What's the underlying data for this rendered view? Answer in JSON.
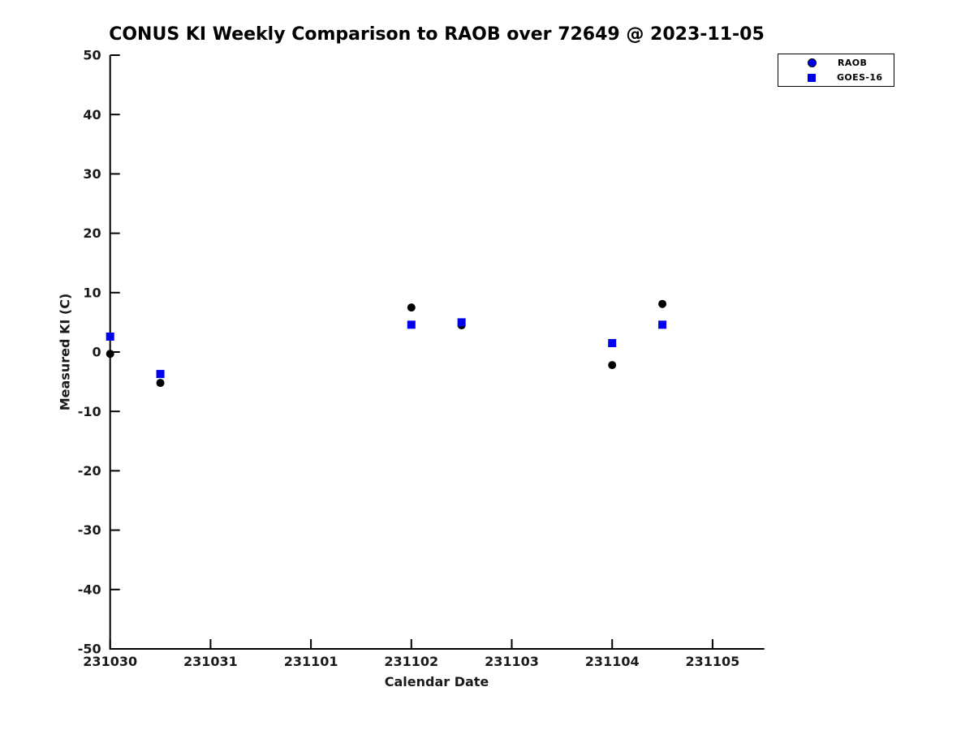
{
  "figure": {
    "title": "CONUS KI Weekly Comparison to RAOB over 72649 @ 2023-11-05",
    "xlabel": "Calendar Date",
    "ylabel": "Measured KI (C)"
  },
  "legend": {
    "position": "top-right",
    "items": [
      {
        "label": "RAOB",
        "marker": "circle-icon",
        "color": "#0000ee"
      },
      {
        "label": "GOES-16",
        "marker": "square-icon",
        "color": "#0000ee"
      }
    ]
  },
  "chart_data": {
    "type": "scatter",
    "title": "CONUS KI Weekly Comparison to RAOB over 72649 @ 2023-11-05",
    "xlabel": "Calendar Date",
    "ylabel": "Measured KI (C)",
    "x_tick_labels": [
      "231030",
      "231031",
      "231101",
      "231102",
      "231103",
      "231104",
      "231105"
    ],
    "y_ticks": [
      50,
      40,
      30,
      20,
      10,
      0,
      -10,
      -20,
      -30,
      -40,
      -50
    ],
    "ylim": [
      -50,
      50
    ],
    "xlim_days_from_first_tick": [
      0,
      6.52
    ],
    "grid": false,
    "legend_position": "top-right",
    "axis_color": "#000000",
    "tick_label_color": "#1a1a1a",
    "series": [
      {
        "name": "RAOB",
        "marker": "circle",
        "plot_color": "#000000",
        "legend_color": "#0000ee",
        "points": [
          {
            "date": "231030.0",
            "x_days": 0.0,
            "y": -0.3
          },
          {
            "date": "231030.5",
            "x_days": 0.5,
            "y": -5.2
          },
          {
            "date": "231102.0",
            "x_days": 3.0,
            "y": 7.5
          },
          {
            "date": "231102.5",
            "x_days": 3.5,
            "y": 4.5
          },
          {
            "date": "231104.0",
            "x_days": 5.0,
            "y": -2.2
          },
          {
            "date": "231104.5",
            "x_days": 5.5,
            "y": 8.1
          }
        ]
      },
      {
        "name": "GOES-16",
        "marker": "square",
        "plot_color": "#0000ee",
        "legend_color": "#0000ee",
        "points": [
          {
            "date": "231030.0",
            "x_days": 0.0,
            "y": 2.6
          },
          {
            "date": "231030.5",
            "x_days": 0.5,
            "y": -3.7
          },
          {
            "date": "231102.0",
            "x_days": 3.0,
            "y": 4.6
          },
          {
            "date": "231102.5",
            "x_days": 3.5,
            "y": 5.0
          },
          {
            "date": "231104.0",
            "x_days": 5.0,
            "y": 1.5
          },
          {
            "date": "231104.5",
            "x_days": 5.5,
            "y": 4.6
          }
        ]
      }
    ]
  }
}
